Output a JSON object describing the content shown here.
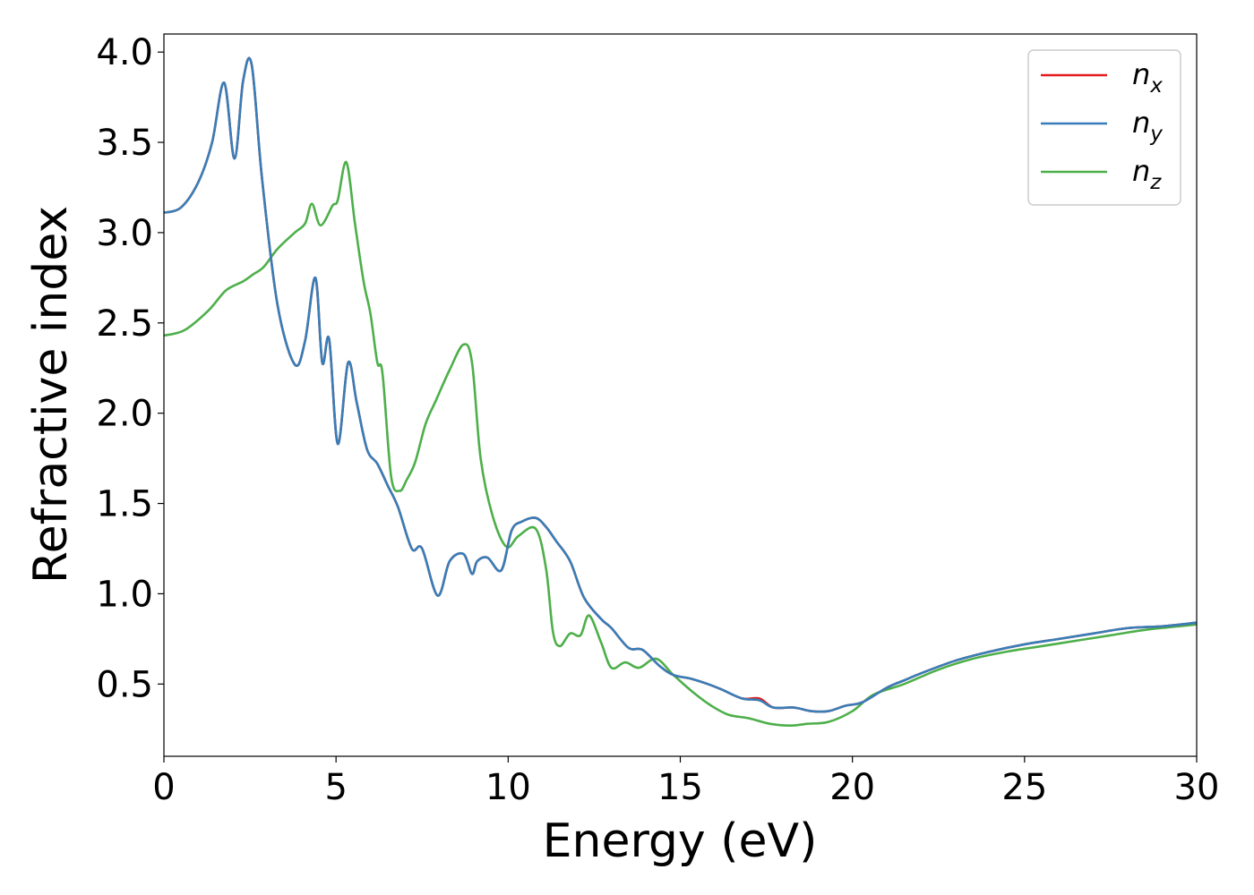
{
  "chart_data": {
    "type": "line",
    "title": "",
    "xlabel": "Energy (eV)",
    "ylabel": "Refractive index",
    "xlim": [
      0,
      30
    ],
    "ylim": [
      0.1,
      4.1
    ],
    "xticks": [
      0,
      5,
      10,
      15,
      20,
      25,
      30
    ],
    "xtick_labels": [
      "0",
      "5",
      "10",
      "15",
      "20",
      "25",
      "30"
    ],
    "yticks": [
      0.5,
      1.0,
      1.5,
      2.0,
      2.5,
      3.0,
      3.5,
      4.0
    ],
    "ytick_labels": [
      "0.5",
      "1.0",
      "1.5",
      "2.0",
      "2.5",
      "3.0",
      "3.5",
      "4.0"
    ],
    "grid": false,
    "legend_position": "top-right",
    "series": [
      {
        "name": "n_x",
        "label_base": "n",
        "label_sub": "x",
        "color": "#e41a1c",
        "x": [
          0,
          0.5,
          1.0,
          1.4,
          1.75,
          2.05,
          2.3,
          2.55,
          2.85,
          3.3,
          3.8,
          4.1,
          4.4,
          4.6,
          4.8,
          5.05,
          5.35,
          5.6,
          5.9,
          6.2,
          6.5,
          6.8,
          7.2,
          7.5,
          7.95,
          8.3,
          8.7,
          8.95,
          9.1,
          9.4,
          9.8,
          10.1,
          10.4,
          10.8,
          11.1,
          11.4,
          11.8,
          12.2,
          12.7,
          13.0,
          13.5,
          13.9,
          14.4,
          14.8,
          15.3,
          15.8,
          16.2,
          16.8,
          17.3,
          17.7,
          18.3,
          18.8,
          19.3,
          19.8,
          20.3,
          21.0,
          21.5,
          22.0,
          23.0,
          24.0,
          25.0,
          26.0,
          27.0,
          28.0,
          29.0,
          30.0
        ],
        "y": [
          3.11,
          3.14,
          3.28,
          3.5,
          3.83,
          3.41,
          3.84,
          3.93,
          3.3,
          2.6,
          2.27,
          2.4,
          2.75,
          2.28,
          2.41,
          1.83,
          2.28,
          2.06,
          1.8,
          1.72,
          1.6,
          1.48,
          1.25,
          1.25,
          0.99,
          1.18,
          1.22,
          1.11,
          1.18,
          1.2,
          1.13,
          1.35,
          1.4,
          1.42,
          1.37,
          1.29,
          1.18,
          0.98,
          0.86,
          0.81,
          0.7,
          0.69,
          0.6,
          0.55,
          0.53,
          0.5,
          0.47,
          0.42,
          0.42,
          0.37,
          0.37,
          0.35,
          0.35,
          0.38,
          0.4,
          0.48,
          0.52,
          0.56,
          0.63,
          0.68,
          0.72,
          0.75,
          0.78,
          0.81,
          0.82,
          0.84
        ]
      },
      {
        "name": "n_y",
        "label_base": "n",
        "label_sub": "y",
        "color": "#377eb8",
        "x": [
          0,
          0.5,
          1.0,
          1.4,
          1.75,
          2.05,
          2.3,
          2.55,
          2.85,
          3.3,
          3.8,
          4.1,
          4.4,
          4.6,
          4.8,
          5.05,
          5.35,
          5.6,
          5.9,
          6.2,
          6.5,
          6.8,
          7.2,
          7.5,
          7.95,
          8.3,
          8.7,
          8.95,
          9.1,
          9.4,
          9.8,
          10.1,
          10.4,
          10.8,
          11.1,
          11.4,
          11.8,
          12.2,
          12.7,
          13.0,
          13.5,
          13.9,
          14.4,
          14.8,
          15.3,
          15.8,
          16.2,
          16.8,
          17.3,
          17.7,
          18.3,
          18.8,
          19.3,
          19.8,
          20.3,
          21.0,
          21.5,
          22.0,
          23.0,
          24.0,
          25.0,
          26.0,
          27.0,
          28.0,
          29.0,
          30.0
        ],
        "y": [
          3.11,
          3.14,
          3.28,
          3.5,
          3.83,
          3.41,
          3.84,
          3.93,
          3.3,
          2.6,
          2.27,
          2.4,
          2.75,
          2.28,
          2.41,
          1.83,
          2.28,
          2.06,
          1.8,
          1.72,
          1.6,
          1.48,
          1.25,
          1.25,
          0.99,
          1.18,
          1.22,
          1.11,
          1.18,
          1.2,
          1.13,
          1.35,
          1.4,
          1.42,
          1.37,
          1.29,
          1.18,
          0.98,
          0.86,
          0.81,
          0.7,
          0.69,
          0.6,
          0.55,
          0.53,
          0.5,
          0.47,
          0.42,
          0.41,
          0.37,
          0.37,
          0.35,
          0.35,
          0.38,
          0.4,
          0.48,
          0.52,
          0.56,
          0.63,
          0.68,
          0.72,
          0.75,
          0.78,
          0.81,
          0.82,
          0.84
        ]
      },
      {
        "name": "n_z",
        "label_base": "n",
        "label_sub": "z",
        "color": "#4daf4a",
        "x": [
          0,
          0.6,
          1.3,
          1.8,
          2.3,
          2.6,
          2.9,
          3.3,
          3.8,
          4.1,
          4.3,
          4.55,
          4.9,
          5.05,
          5.3,
          5.55,
          5.8,
          6.0,
          6.2,
          6.35,
          6.6,
          6.85,
          7.05,
          7.3,
          7.6,
          7.9,
          8.3,
          8.7,
          8.95,
          9.2,
          9.55,
          9.95,
          10.3,
          10.8,
          11.1,
          11.3,
          11.5,
          11.8,
          12.1,
          12.35,
          12.7,
          13.0,
          13.4,
          13.8,
          14.3,
          14.8,
          15.4,
          15.9,
          16.4,
          17.0,
          17.6,
          18.2,
          18.7,
          19.3,
          20.0,
          20.6,
          21.5,
          22.5,
          23.5,
          24.5,
          25.5,
          26.5,
          27.5,
          28.5,
          29.5,
          30.0
        ],
        "y": [
          2.43,
          2.46,
          2.57,
          2.68,
          2.73,
          2.77,
          2.81,
          2.91,
          3.0,
          3.05,
          3.16,
          3.04,
          3.15,
          3.18,
          3.39,
          3.05,
          2.73,
          2.55,
          2.28,
          2.22,
          1.65,
          1.57,
          1.63,
          1.73,
          1.94,
          2.07,
          2.24,
          2.38,
          2.28,
          1.75,
          1.43,
          1.26,
          1.32,
          1.36,
          1.14,
          0.79,
          0.71,
          0.78,
          0.77,
          0.88,
          0.73,
          0.59,
          0.62,
          0.59,
          0.64,
          0.55,
          0.45,
          0.38,
          0.33,
          0.31,
          0.28,
          0.27,
          0.28,
          0.29,
          0.35,
          0.44,
          0.5,
          0.58,
          0.64,
          0.68,
          0.71,
          0.74,
          0.77,
          0.8,
          0.82,
          0.83
        ]
      }
    ]
  }
}
